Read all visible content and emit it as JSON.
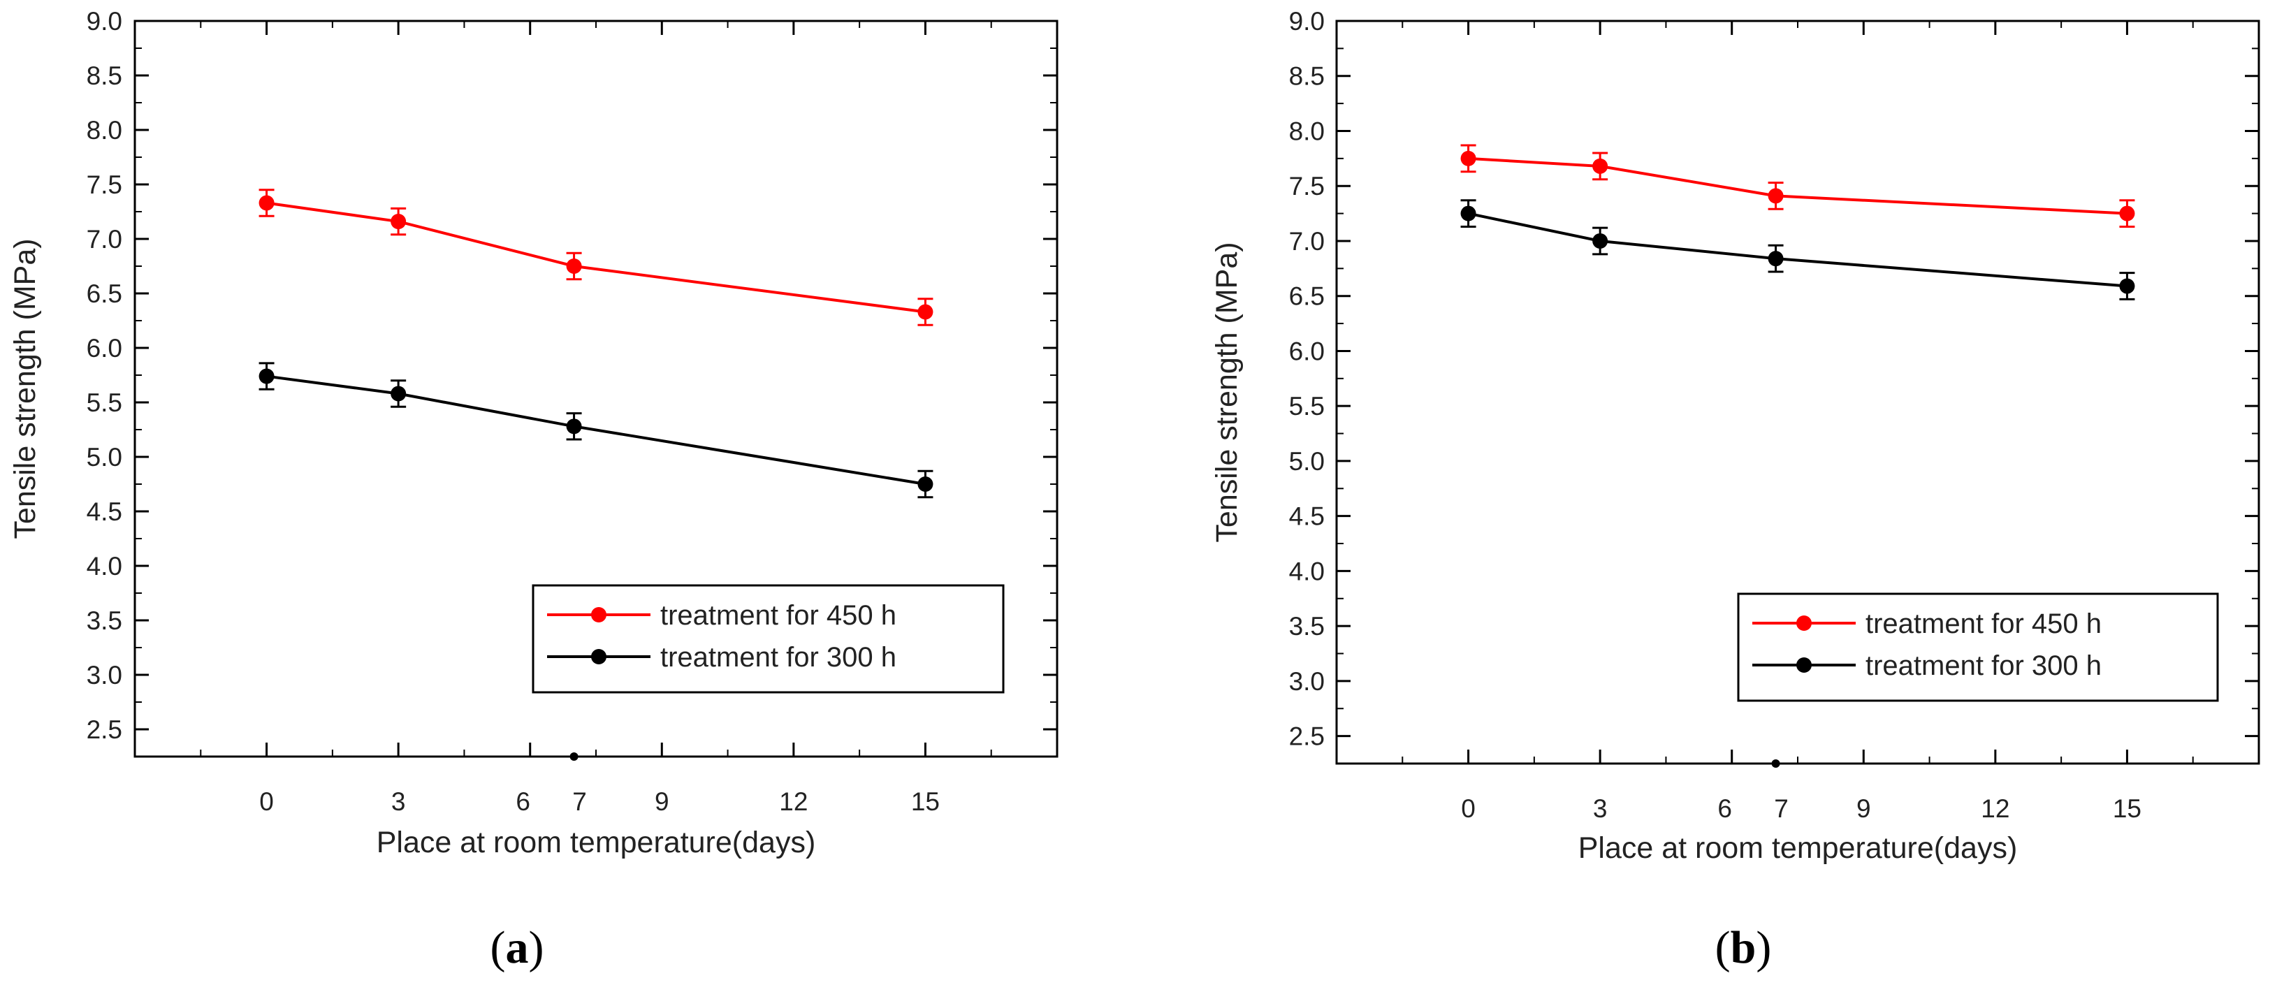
{
  "figure": {
    "panels": [
      {
        "label_open": "(",
        "label_letter": "a",
        "label_close": ")"
      },
      {
        "label_open": "(",
        "label_letter": "b",
        "label_close": ")"
      }
    ]
  },
  "chart_data": [
    {
      "type": "line",
      "panel": "a",
      "title": "",
      "xlabel": "Place at room temperature(days)",
      "ylabel": "Tensile strength (MPa)",
      "xlim": [
        -3,
        18
      ],
      "ylim": [
        2.25,
        9.0
      ],
      "xticks": [
        0,
        3,
        6,
        7,
        9,
        12,
        15
      ],
      "xtick_labels": [
        "0",
        "3",
        "6",
        "7",
        "9",
        "12",
        "15"
      ],
      "yticks": [
        2.5,
        3.0,
        3.5,
        4.0,
        4.5,
        5.0,
        5.5,
        6.0,
        6.5,
        7.0,
        7.5,
        8.0,
        8.5,
        9.0
      ],
      "ytick_labels": [
        "2.5",
        "3.0",
        "3.5",
        "4.0",
        "4.5",
        "5.0",
        "5.5",
        "6.0",
        "6.5",
        "7.0",
        "7.5",
        "8.0",
        "8.5",
        "9.0"
      ],
      "x": [
        0,
        3,
        7,
        15
      ],
      "series": [
        {
          "name": "treatment for 450 h",
          "color": "#ff0000",
          "values": [
            7.33,
            7.16,
            6.75,
            6.33
          ],
          "errors": [
            0.12,
            0.12,
            0.12,
            0.12
          ]
        },
        {
          "name": "treatment for 300 h",
          "color": "#000000",
          "values": [
            5.74,
            5.58,
            5.28,
            4.75
          ],
          "errors": [
            0.12,
            0.12,
            0.12,
            0.12
          ]
        }
      ],
      "stray_marker": {
        "x": 7,
        "y": 2.25
      },
      "legend_position": "lower-right",
      "grid": false
    },
    {
      "type": "line",
      "panel": "b",
      "title": "",
      "xlabel": "Place at room temperature(days)",
      "ylabel": "Tensile strength (MPa)",
      "xlim": [
        -3,
        18
      ],
      "ylim": [
        2.25,
        9.0
      ],
      "xticks": [
        0,
        3,
        6,
        7,
        9,
        12,
        15
      ],
      "xtick_labels": [
        "0",
        "3",
        "6",
        "7",
        "9",
        "12",
        "15"
      ],
      "yticks": [
        2.5,
        3.0,
        3.5,
        4.0,
        4.5,
        5.0,
        5.5,
        6.0,
        6.5,
        7.0,
        7.5,
        8.0,
        8.5,
        9.0
      ],
      "ytick_labels": [
        "2.5",
        "3.0",
        "3.5",
        "4.0",
        "4.5",
        "5.0",
        "5.5",
        "6.0",
        "6.5",
        "7.0",
        "7.5",
        "8.0",
        "8.5",
        "9.0"
      ],
      "x": [
        0,
        3,
        7,
        15
      ],
      "series": [
        {
          "name": "treatment for 450 h",
          "color": "#ff0000",
          "values": [
            7.75,
            7.68,
            7.41,
            7.25
          ],
          "errors": [
            0.12,
            0.12,
            0.12,
            0.12
          ]
        },
        {
          "name": "treatment for 300 h",
          "color": "#000000",
          "values": [
            7.25,
            7.0,
            6.84,
            6.59
          ],
          "errors": [
            0.12,
            0.12,
            0.12,
            0.12
          ]
        }
      ],
      "stray_marker": {
        "x": 7,
        "y": 2.25
      },
      "legend_position": "lower-right",
      "grid": false
    }
  ]
}
